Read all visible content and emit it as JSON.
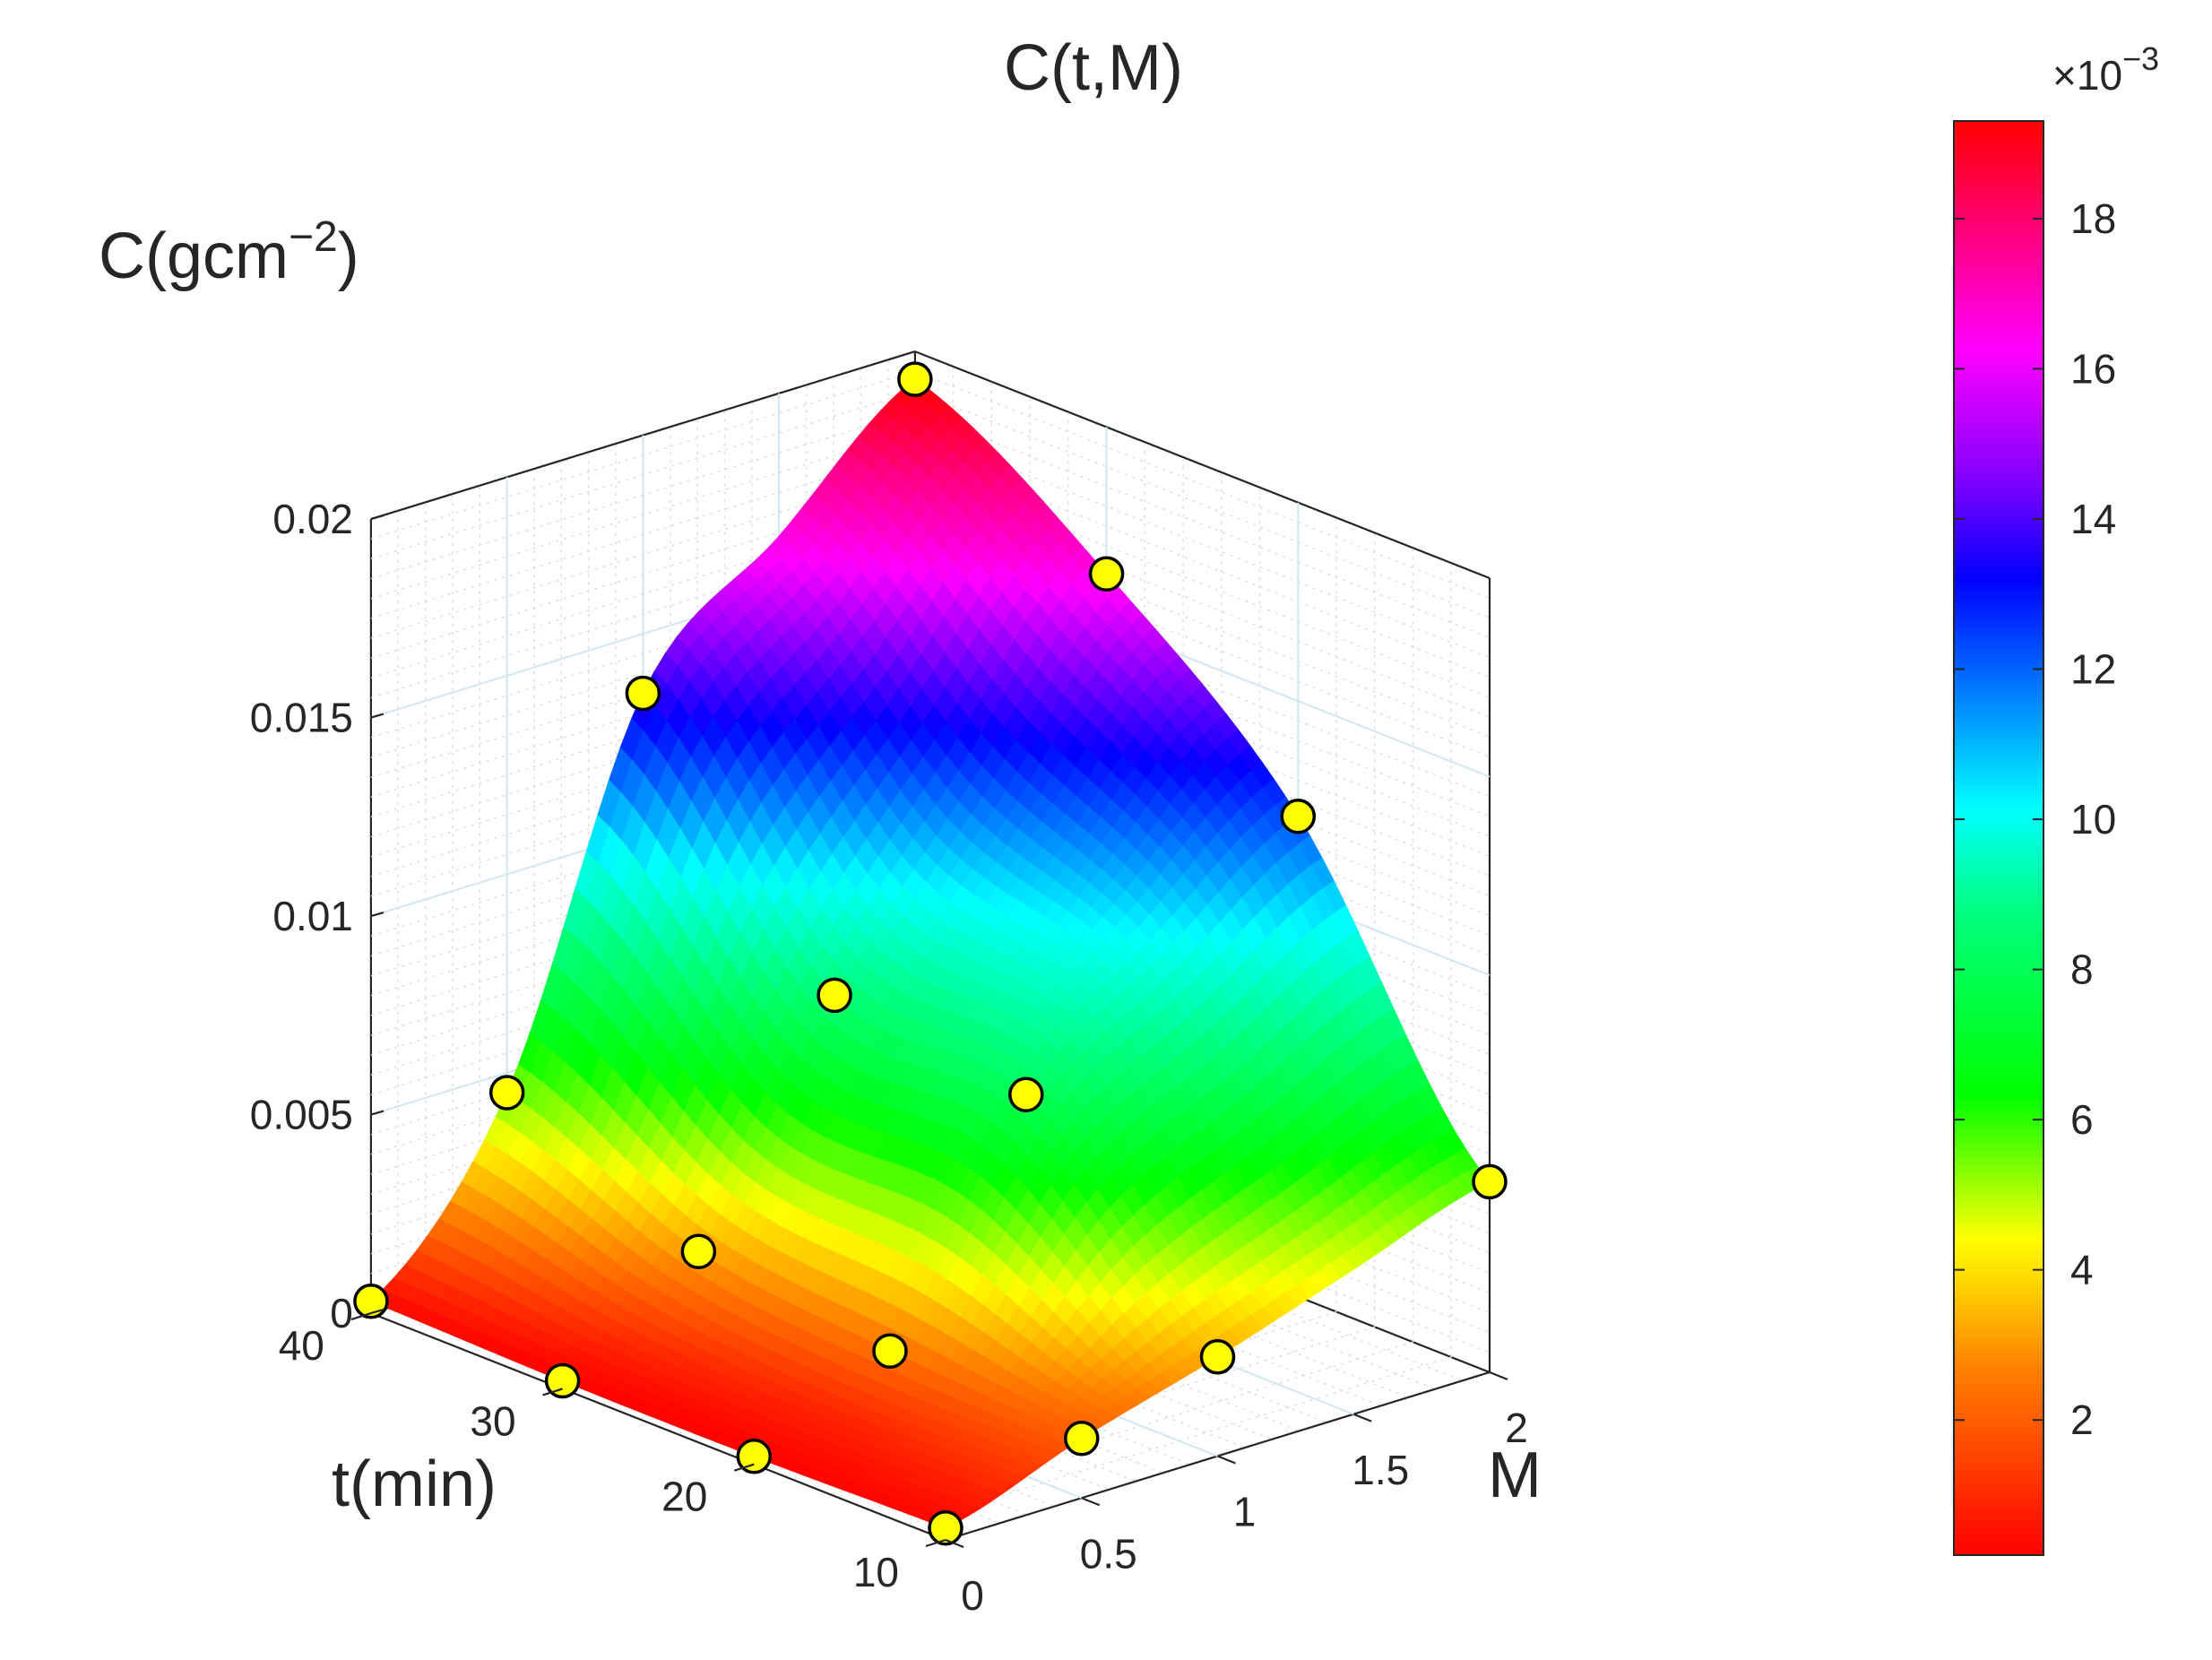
{
  "chart_data": {
    "type": "surface",
    "title": "C(t,M)",
    "zlabel": {
      "base": "C(gcm",
      "sup": "−2",
      "tail": ")"
    },
    "xlabel": "t(min)",
    "ylabel": "M",
    "t_range": [
      10,
      40
    ],
    "M_range": [
      0,
      2
    ],
    "c_range": [
      0,
      0.02
    ],
    "t_ticks": [
      "10",
      "20",
      "30",
      "40"
    ],
    "M_ticks": [
      "0",
      "0.5",
      "1",
      "1.5",
      "2"
    ],
    "c_ticks": [
      "0",
      "0.005",
      "0.01",
      "0.015",
      "0.02"
    ],
    "grid": true,
    "colormap": "hsv-like (red → yellow → green → cyan → blue → magenta → red)",
    "colorbar": {
      "exponent_base": "×10",
      "exponent_power": "−3",
      "ticks": [
        "2",
        "4",
        "6",
        "8",
        "10",
        "12",
        "14",
        "16",
        "18"
      ],
      "tick_values": [
        2,
        4,
        6,
        8,
        10,
        12,
        14,
        16,
        18
      ],
      "range": [
        0.2,
        19.3
      ]
    },
    "t": [
      10,
      20,
      30,
      40
    ],
    "M": [
      0,
      0.5,
      1,
      1.5,
      2
    ],
    "points": [
      {
        "t": 10,
        "M": 0,
        "C": 0.0003
      },
      {
        "t": 10,
        "M": 0.5,
        "C": 0.0015
      },
      {
        "t": 10,
        "M": 1,
        "C": 0.0025
      },
      {
        "t": 10,
        "M": 2,
        "C": 0.0048
      },
      {
        "t": 20,
        "M": 0,
        "C": 0.0002
      },
      {
        "t": 20,
        "M": 0.5,
        "C": 0.0018
      },
      {
        "t": 20,
        "M": 1,
        "C": 0.0072
      },
      {
        "t": 20,
        "M": 2,
        "C": 0.0121
      },
      {
        "t": 30,
        "M": 0,
        "C": 0.0002
      },
      {
        "t": 30,
        "M": 0.5,
        "C": 0.0024
      },
      {
        "t": 30,
        "M": 1,
        "C": 0.0078
      },
      {
        "t": 30,
        "M": 2,
        "C": 0.0163
      },
      {
        "t": 40,
        "M": 0,
        "C": 0.0003
      },
      {
        "t": 40,
        "M": 0.5,
        "C": 0.0045
      },
      {
        "t": 40,
        "M": 1,
        "C": 0.0135
      },
      {
        "t": 40,
        "M": 2,
        "C": 0.0193
      }
    ]
  }
}
